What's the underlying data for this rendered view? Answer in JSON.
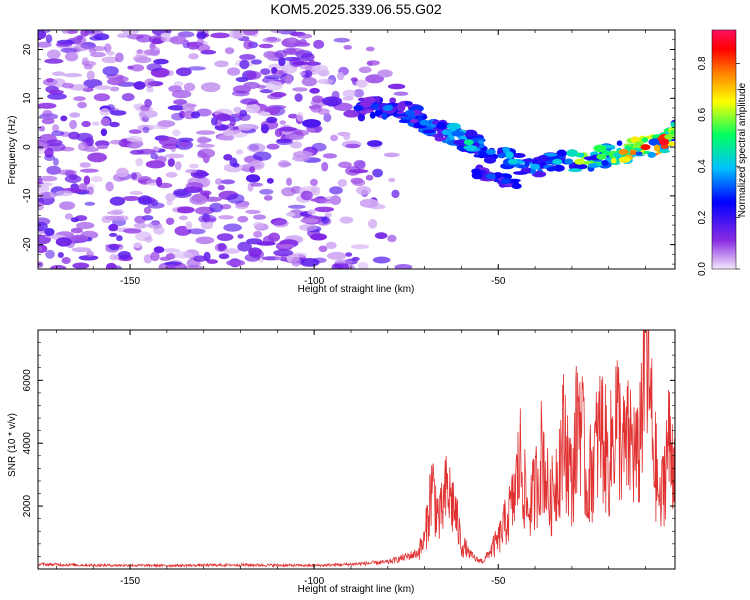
{
  "title": "KOM5.2025.339.06.55.G02",
  "colorbar": {
    "label": "Normalized spectral amplitude",
    "range": [
      0.0,
      0.93
    ],
    "ticks": [
      0.0,
      0.2,
      0.4,
      0.6,
      0.8
    ],
    "tick_labels": [
      "0.0",
      "0.2",
      "0.4",
      "0.6",
      "0.8"
    ],
    "colors": [
      "#f4e8fb",
      "#8a2be2",
      "#0000ff",
      "#00c0ff",
      "#00ff60",
      "#ffff00",
      "#ff8000",
      "#ff0000",
      "#ff1060"
    ]
  },
  "chart_data": [
    {
      "type": "heatmap",
      "title": "KOM5.2025.339.06.55.G02",
      "xlabel": "Height of straight line (km)",
      "ylabel": "Frequency (Hz)",
      "xlim": [
        -175,
        -2
      ],
      "ylim": [
        -25,
        24
      ],
      "xticks": [
        -150,
        -100,
        -50
      ],
      "xtick_labels": [
        "-150",
        "-100",
        "-50"
      ],
      "yticks": [
        -20,
        -10,
        0,
        10,
        20
      ],
      "ytick_labels": [
        "-20",
        "-10",
        "0",
        "10",
        "20"
      ],
      "noise_region": {
        "x": [
          -175,
          -72
        ],
        "y": [
          -25,
          24
        ],
        "amplitude": [
          0.02,
          0.18
        ]
      },
      "signal_ridge": {
        "x": [
          -88,
          -80,
          -74,
          -70,
          -64,
          -58,
          -52,
          -46,
          -40,
          -34,
          -28,
          -22,
          -16,
          -10,
          -5,
          -2
        ],
        "y": [
          8,
          8,
          7,
          5,
          3,
          1,
          -1,
          -3,
          -4,
          -3,
          -3,
          -2,
          -1,
          0,
          1,
          3
        ],
        "amplitude": [
          0.28,
          0.35,
          0.32,
          0.35,
          0.38,
          0.48,
          0.35,
          0.42,
          0.38,
          0.42,
          0.62,
          0.55,
          0.75,
          0.85,
          0.88,
          0.55
        ]
      },
      "secondary_ridge": {
        "x": [
          -56,
          -52,
          -48,
          -45
        ],
        "y": [
          -5,
          -6,
          -7,
          -8
        ],
        "amplitude": [
          0.25,
          0.32,
          0.3,
          0.25
        ]
      }
    },
    {
      "type": "line",
      "xlabel": "Height of straight line (km)",
      "ylabel": "SNR (10 * v/v)",
      "xlim": [
        -175,
        -2
      ],
      "ylim": [
        0,
        7600
      ],
      "xticks": [
        -150,
        -100,
        -50
      ],
      "xtick_labels": [
        "-150",
        "-100",
        "-50"
      ],
      "yticks": [
        2000,
        4000,
        6000
      ],
      "ytick_labels": [
        "2000",
        "4000",
        "6000"
      ],
      "series": [
        {
          "name": "SNR",
          "color": "#e03030",
          "x": [
            -175,
            -160,
            -140,
            -120,
            -100,
            -90,
            -80,
            -76,
            -72,
            -70,
            -68,
            -66,
            -64,
            -62,
            -60,
            -58,
            -56,
            -54,
            -52,
            -50,
            -48,
            -46,
            -44,
            -42,
            -40,
            -38,
            -36,
            -34,
            -32,
            -30,
            -28,
            -26,
            -24,
            -22,
            -20,
            -18,
            -16,
            -14,
            -12,
            -10,
            -8,
            -6,
            -4,
            -2
          ],
          "y": [
            150,
            120,
            110,
            130,
            110,
            150,
            220,
            350,
            500,
            900,
            2700,
            1500,
            2500,
            2000,
            800,
            500,
            300,
            250,
            600,
            900,
            1500,
            2100,
            3500,
            1800,
            2500,
            3800,
            2000,
            3100,
            4300,
            2600,
            5400,
            2500,
            3500,
            4500,
            3200,
            5000,
            3700,
            4100,
            3300,
            7500,
            4000,
            1900,
            4000,
            3500
          ]
        }
      ]
    }
  ]
}
